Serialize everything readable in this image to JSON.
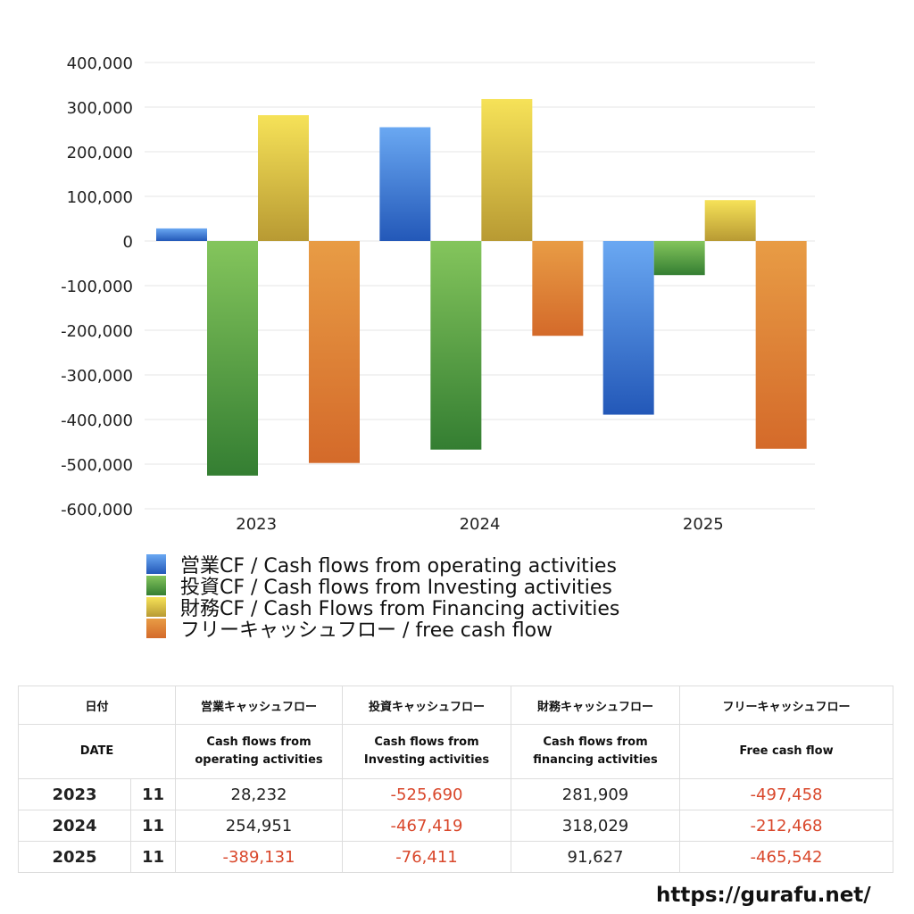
{
  "chart_data": {
    "type": "bar",
    "categories": [
      "2023",
      "2024",
      "2025"
    ],
    "series": [
      {
        "name": "営業CF / Cash flows from operating activities",
        "color": "#3a7ad8",
        "values": [
          28232,
          254951,
          -389131
        ]
      },
      {
        "name": "投資CF / Cash flows from Investing activities",
        "color": "#5aa542",
        "values": [
          -525690,
          -467419,
          -76411
        ]
      },
      {
        "name": "財務CF / Cash Flows from Financing activities",
        "color": "#e8cf45",
        "values": [
          281909,
          318029,
          91627
        ]
      },
      {
        "name": "フリーキャッシュフロー / free cash flow",
        "color": "#e2813a",
        "values": [
          -497458,
          -212468,
          -465542
        ]
      }
    ],
    "ylim": [
      -600000,
      400000
    ],
    "yticks": [
      "400,000",
      "300,000",
      "200,000",
      "100,000",
      "0",
      "-100,000",
      "-200,000",
      "-300,000",
      "-400,000",
      "-500,000",
      "-600,000"
    ],
    "grid": true,
    "legend_position": "bottom-left",
    "title": "",
    "xlabel": "",
    "ylabel": ""
  },
  "table": {
    "header_jp": {
      "date": "日付",
      "operating": "営業キャッシュフロー",
      "investing": "投資キャッシュフロー",
      "financing": "財務キャッシュフロー",
      "free": "フリーキャッシュフロー"
    },
    "header_en": {
      "date": "DATE",
      "operating_1": "Cash flows from",
      "operating_2": "operating activities",
      "investing_1": "Cash flows from",
      "investing_2": "Investing activities",
      "financing_1": "Cash flows from",
      "financing_2": "financing activities",
      "free": "Free cash flow"
    },
    "rows": [
      {
        "year": "2023",
        "month": "11",
        "operating": "28,232",
        "investing": "-525,690",
        "financing": "281,909",
        "free": "-497,458"
      },
      {
        "year": "2024",
        "month": "11",
        "operating": "254,951",
        "investing": "-467,419",
        "financing": "318,029",
        "free": "-212,468"
      },
      {
        "year": "2025",
        "month": "11",
        "operating": "-389,131",
        "investing": "-76,411",
        "financing": "91,627",
        "free": "-465,542"
      }
    ]
  },
  "footer": {
    "url": "https://gurafu.net/"
  }
}
